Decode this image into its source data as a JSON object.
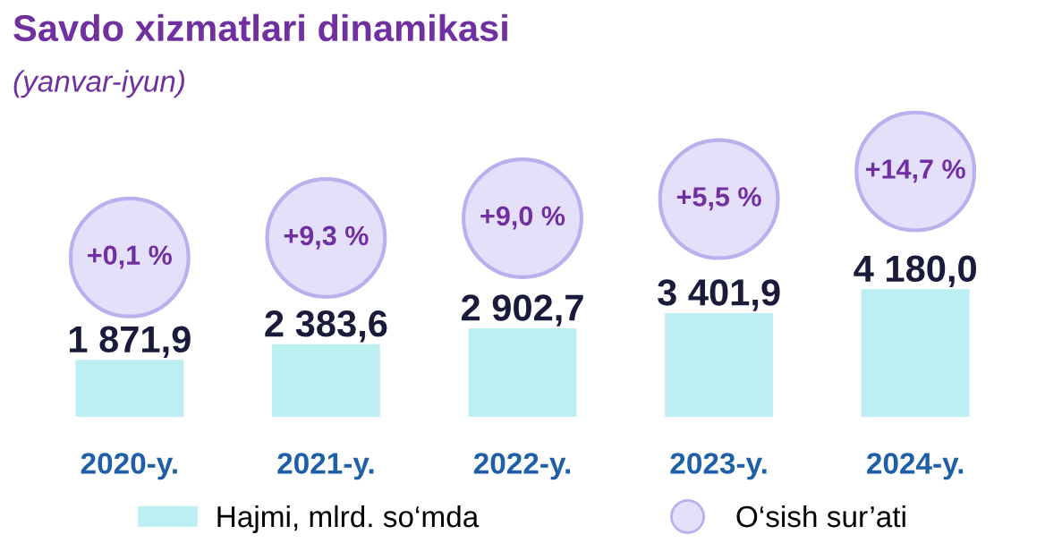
{
  "chart_data": {
    "type": "bar",
    "title": "Savdo xizmatlari dinamikasi",
    "subtitle": "(yanvar-iyun)",
    "categories": [
      "2020-y.",
      "2021-y.",
      "2022-y.",
      "2023-y.",
      "2024-y."
    ],
    "series": [
      {
        "name": "Hajmi, mlrd. so‘mda",
        "color": "#bdeef2",
        "values": [
          1871.9,
          2383.6,
          2902.7,
          3401.9,
          4180.0
        ],
        "value_labels": [
          "1 871,9",
          "2 383,6",
          "2 902,7",
          "3 401,9",
          "4 180,0"
        ]
      }
    ],
    "annotations": [
      "+0,1 %",
      "+9,3 %",
      "+9,0 %",
      "+5,5 %",
      "+14,7 %",
      "O‘sish sur’ati"
    ],
    "tick_labels": "x",
    "grid": false,
    "legend": "bottom"
  }
}
